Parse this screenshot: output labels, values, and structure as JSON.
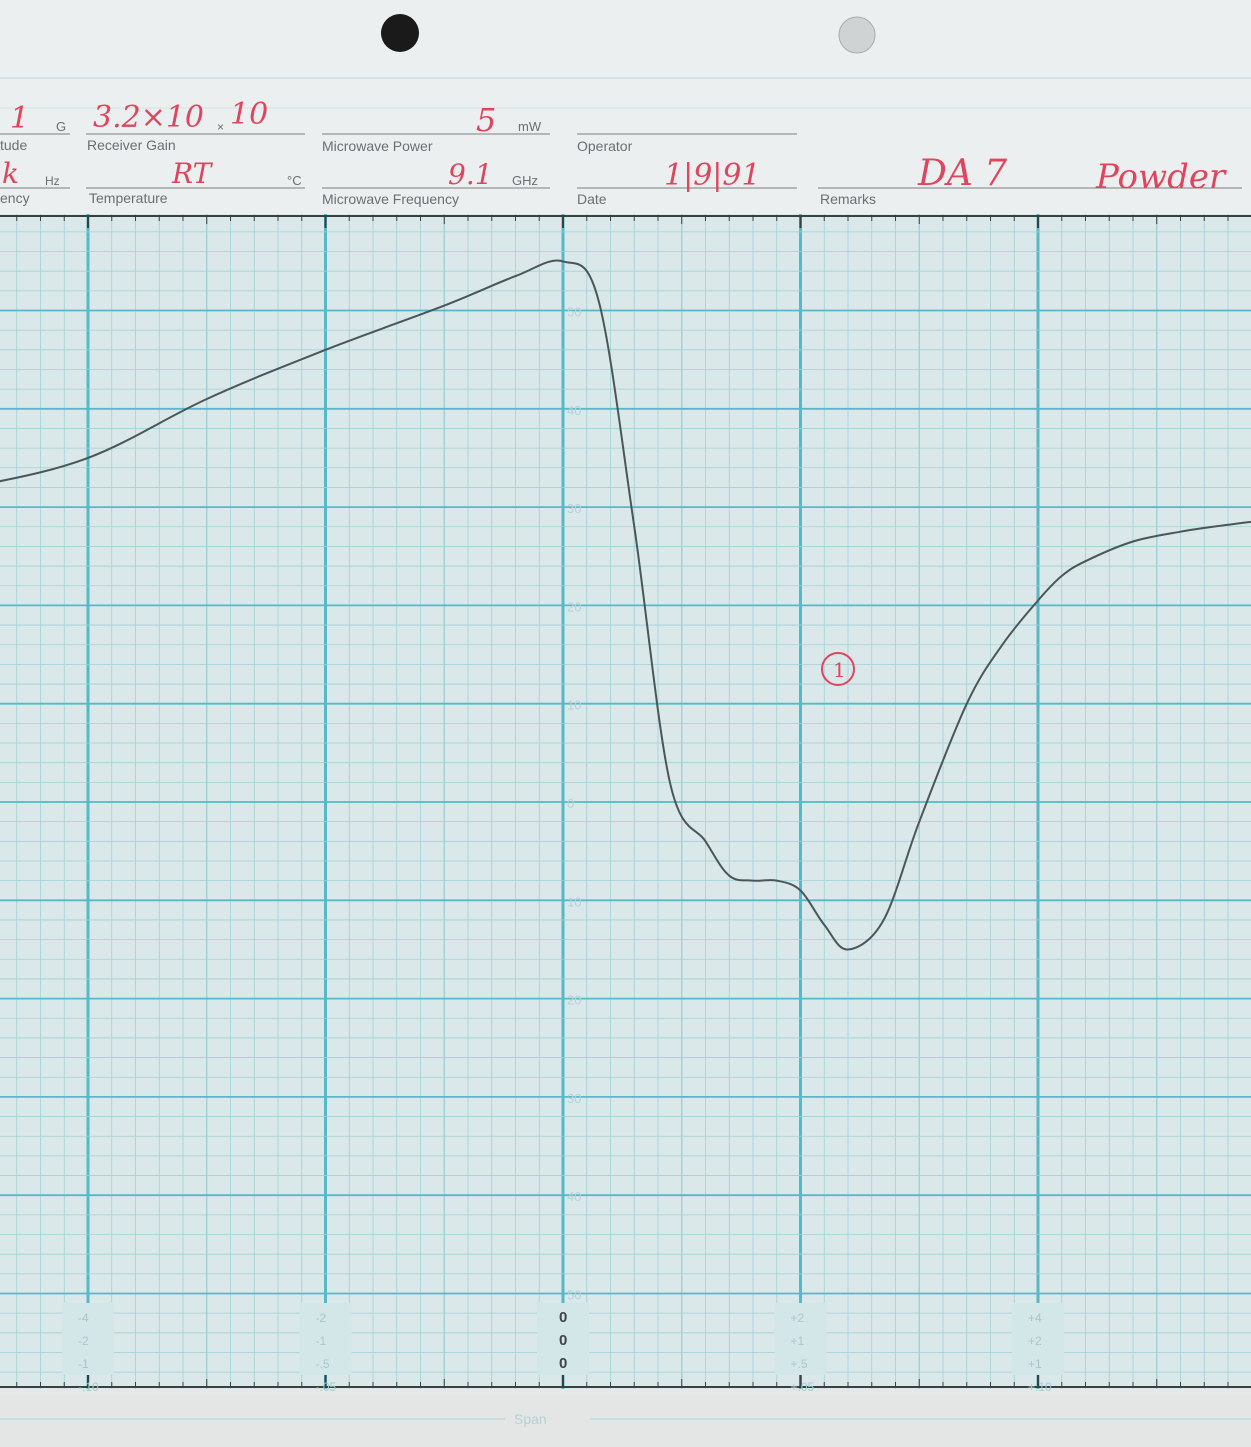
{
  "header": {
    "fields": [
      {
        "key": "modulation_amplitude",
        "label": "tude",
        "value": "1",
        "unit": "G"
      },
      {
        "key": "modulation_frequency",
        "label": "ency",
        "value": "k",
        "unit": "Hz"
      },
      {
        "key": "receiver_gain",
        "label": "Receiver Gain",
        "value": "3.2×10",
        "unit": "×",
        "value2": "10"
      },
      {
        "key": "temperature",
        "label": "Temperature",
        "value": "RT",
        "unit": "°C"
      },
      {
        "key": "microwave_power",
        "label": "Microwave Power",
        "value": "5",
        "unit": "mW"
      },
      {
        "key": "microwave_frequency",
        "label": "Microwave Frequency",
        "value": "9.1",
        "unit": "GHz"
      },
      {
        "key": "operator",
        "label": "Operator",
        "value": "",
        "unit": ""
      },
      {
        "key": "date",
        "label": "Date",
        "value": "1|9|91",
        "unit": ""
      },
      {
        "key": "remarks",
        "label": "Remarks",
        "value": "DA 7",
        "unit": "",
        "value2": "Powder"
      }
    ]
  },
  "annotation": {
    "text": "1"
  },
  "footer": {
    "label": "Span"
  },
  "colors": {
    "paper": "#dfe9ea",
    "grid_minor": "#9fd1d6",
    "grid_major": "#55b9c8",
    "header_bg": "#ecefef",
    "ink_print": "#6a6f72",
    "ink_red": "#e0455e",
    "trace": "#4a5658",
    "axis": "#3a3f41"
  },
  "chart_data": {
    "type": "line",
    "title": "",
    "xlabel": "",
    "ylabel": "",
    "xlim": [
      -5,
      5
    ],
    "ylim": [
      -50,
      50
    ],
    "y_tick_labels": [
      "50",
      "40",
      "30",
      "20",
      "10",
      "0",
      "10",
      "20",
      "30",
      "40",
      "50"
    ],
    "x_scale_labels": [
      [
        "-4",
        "-2",
        "-1",
        "-.10"
      ],
      [
        "-2",
        "-1",
        "-.5",
        "-.05"
      ],
      [
        "0",
        "0",
        "0",
        ""
      ],
      [
        "+2",
        "+1",
        "+.5",
        "+.05"
      ],
      [
        "+4",
        "+2",
        "+1",
        "+.10"
      ]
    ],
    "series": [
      {
        "name": "",
        "x": [
          -4.8,
          -4.4,
          -4.0,
          -3.5,
          -3.0,
          -2.5,
          -2.0,
          -1.5,
          -1.0,
          -0.5,
          -0.2,
          0.0,
          0.15,
          0.3,
          0.45,
          0.6,
          0.7,
          0.8,
          0.9,
          1.0,
          1.1,
          1.2,
          1.35,
          1.5,
          1.7,
          1.85,
          2.0,
          2.1,
          2.2,
          2.4,
          2.6,
          2.8,
          3.0,
          3.5,
          4.0,
          4.5,
          5.0
        ],
        "y": [
          28,
          28.2,
          28.5,
          29,
          30,
          32,
          35,
          41,
          46,
          50.5,
          53.5,
          55,
          51,
          28,
          2,
          -4,
          -7.5,
          -8,
          -8,
          -9,
          -12.5,
          -15,
          -12,
          -2,
          10,
          16,
          20.5,
          23,
          24.5,
          26.5,
          27.5,
          28.2,
          28.7,
          29.2,
          29.5,
          29.7,
          29.8
        ]
      }
    ]
  }
}
